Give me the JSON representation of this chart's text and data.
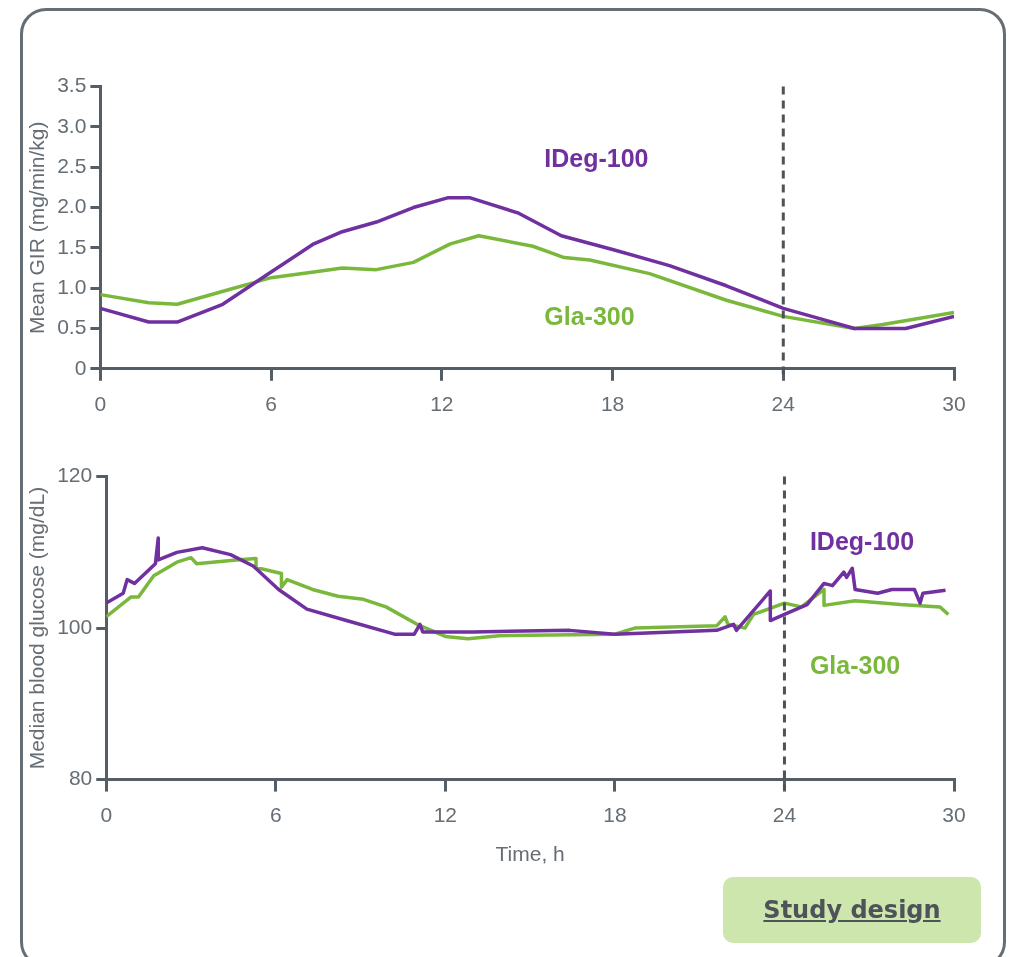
{
  "chart_data": [
    {
      "type": "line",
      "ylabel": "Mean GIR (mg/min/kg)",
      "xlim": [
        0,
        30
      ],
      "xticks": [
        0,
        6,
        12,
        18,
        24,
        30
      ],
      "ylim": [
        0,
        3.5
      ],
      "yticks": [
        0,
        {
          "value": 0.5,
          "label": "0.5"
        },
        {
          "value": 1,
          "label": "1.0"
        },
        {
          "value": 1.5,
          "label": "1.5"
        },
        {
          "value": 2,
          "label": "2.0"
        },
        {
          "value": 2.5,
          "label": "2.5"
        },
        {
          "value": 3,
          "label": "3.0"
        },
        {
          "value": 3.5,
          "label": "3.5"
        }
      ],
      "grid": false,
      "legend": false,
      "marker": "none",
      "ref_lines": [
        {
          "axis": "x",
          "value": 24,
          "label": null,
          "color": "#4d5359",
          "line_style": "dashed"
        }
      ],
      "series": [
        {
          "name": "IDeg-100",
          "color": "#7030a0",
          "x": [
            0,
            1.7,
            2.7,
            4.3,
            6,
            7.5,
            8.5,
            9.7,
            11,
            12.2,
            13,
            14.7,
            16.2,
            18,
            20,
            22,
            24,
            25,
            26.5,
            27.5,
            28.3,
            30
          ],
          "values": [
            0.75,
            0.58,
            0.58,
            0.8,
            1.2,
            1.55,
            1.7,
            1.82,
            2.0,
            2.12,
            2.12,
            1.93,
            1.65,
            1.48,
            1.28,
            1.03,
            0.75,
            0.65,
            0.5,
            0.5,
            0.5,
            0.65
          ]
        },
        {
          "name": "Gla-300",
          "color": "#7ab83c",
          "x": [
            0,
            1.7,
            2.7,
            4.5,
            6,
            7.5,
            8.5,
            9.7,
            11,
            12.3,
            13.3,
            15.2,
            16.3,
            17.2,
            19.3,
            22,
            24,
            26.5,
            27.5,
            30
          ],
          "values": [
            0.92,
            0.82,
            0.8,
            0.98,
            1.13,
            1.2,
            1.25,
            1.23,
            1.32,
            1.55,
            1.65,
            1.52,
            1.38,
            1.35,
            1.18,
            0.85,
            0.65,
            0.5,
            0.55,
            0.7
          ]
        }
      ]
    },
    {
      "type": "line",
      "xlabel": "Time, h",
      "ylabel": "Median blood glucose (mg/dL)",
      "xlim": [
        0,
        30
      ],
      "xticks": [
        0,
        6,
        12,
        18,
        24,
        30
      ],
      "ylim": [
        80,
        120
      ],
      "yticks": [
        80,
        100,
        120
      ],
      "grid": false,
      "legend": false,
      "marker": "none",
      "ref_lines": [
        {
          "axis": "x",
          "value": 24,
          "label": null,
          "color": "#4d5359",
          "line_style": "dashed"
        }
      ],
      "annotations": [
        "Study design"
      ],
      "series": [
        {
          "name": "IDeg-100",
          "color": "#7030a0",
          "x": [
            0,
            0.6,
            0.74,
            1.0,
            1.74,
            1.84,
            1.84,
            2.5,
            3.4,
            4.4,
            5.2,
            6.1,
            7.1,
            8.5,
            10.2,
            10.9,
            11.1,
            11.2,
            11.9,
            13.0,
            16.4,
            18,
            21.6,
            22.2,
            22.3,
            23.5,
            23.5,
            24,
            24.8,
            25.4,
            25.7,
            26.1,
            26.2,
            26.4,
            26.5,
            27.3,
            27.8,
            28.6,
            28.8,
            28.9,
            29.7
          ],
          "values": [
            103.3,
            104.6,
            106.4,
            105.9,
            108.5,
            111.9,
            109,
            110,
            110.6,
            109.7,
            108.2,
            105.1,
            102.5,
            101,
            99.2,
            99.2,
            100.5,
            99.5,
            99.5,
            99.5,
            99.7,
            99.2,
            99.7,
            100.5,
            99.7,
            104.9,
            101,
            101.8,
            103.1,
            105.9,
            105.6,
            107.4,
            106.7,
            107.9,
            105.1,
            104.6,
            105.1,
            105.1,
            103.3,
            104.6,
            105
          ]
        },
        {
          "name": "Gla-300",
          "color": "#7ab83c",
          "x": [
            0,
            0.87,
            1.14,
            1.68,
            2.5,
            3.0,
            3.2,
            4.6,
            5.3,
            5.3,
            6.2,
            6.2,
            6.4,
            7.3,
            8.2,
            9.1,
            9.9,
            11,
            12,
            12.8,
            13.9,
            18,
            18.7,
            21.6,
            21.9,
            22,
            22.6,
            22.9,
            24,
            24.6,
            25.4,
            25.4,
            26.5,
            28.1,
            29.5,
            29.8
          ],
          "values": [
            101.5,
            104.1,
            104.1,
            106.9,
            108.7,
            109.3,
            108.5,
            109,
            109.2,
            108,
            107.2,
            105.4,
            106.4,
            105.1,
            104.2,
            103.8,
            102.8,
            100.5,
            98.9,
            98.6,
            99,
            99.2,
            100,
            100.3,
            101.5,
            100.5,
            100,
            101.8,
            103.3,
            102.8,
            105.1,
            103,
            103.6,
            103.1,
            102.8,
            101.8
          ]
        }
      ]
    }
  ]
}
